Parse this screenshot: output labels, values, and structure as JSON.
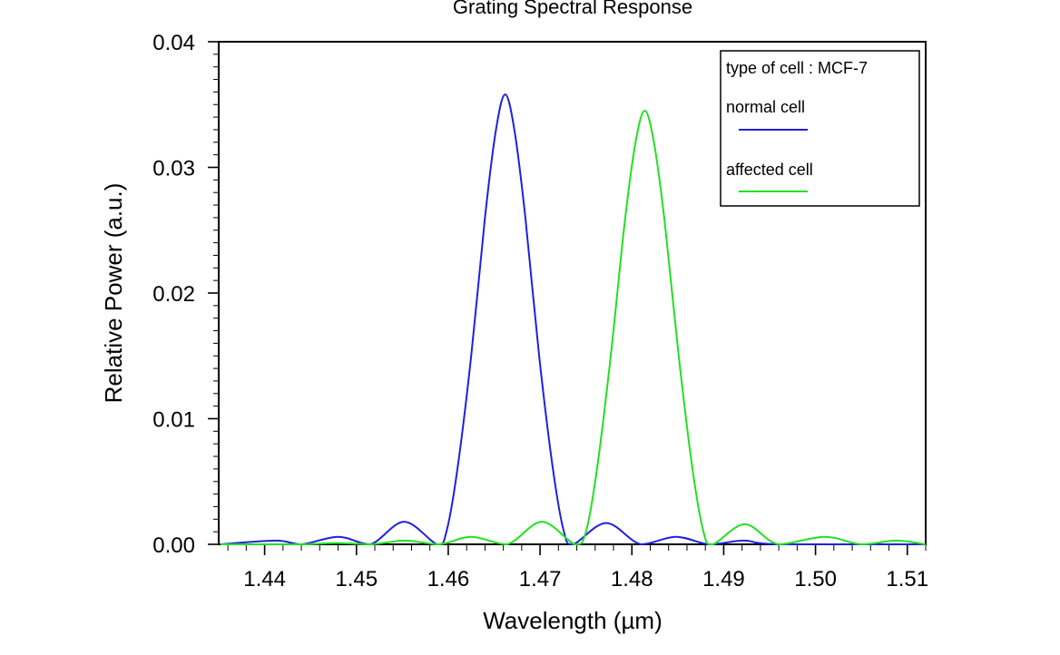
{
  "chart_data": {
    "type": "line",
    "title": "Grating Spectral Response",
    "xlabel": "Wavelength (µm)",
    "ylabel": "Relative Power (a.u.)",
    "xlim": [
      1.435,
      1.512
    ],
    "ylim": [
      0,
      0.04
    ],
    "x_ticks": [
      "1.44",
      "1.45",
      "1.46",
      "1.47",
      "1.48",
      "1.49",
      "1.50",
      "1.51"
    ],
    "y_ticks": [
      "0.00",
      "0.01",
      "0.02",
      "0.03",
      "0.04"
    ],
    "grid": false,
    "legend_position": "top-right",
    "legend_heading": "type of cell : MCF-7",
    "series": [
      {
        "name": "normal cell",
        "color": "#2020e0",
        "peak_x": 1.4662,
        "peak_y": 0.0358,
        "points": [
          [
            1.4352,
            0.0
          ],
          [
            1.4412,
            0.0003
          ],
          [
            1.444,
            0.0
          ],
          [
            1.448,
            0.0006
          ],
          [
            1.4515,
            0.0
          ],
          [
            1.4552,
            0.0018
          ],
          [
            1.4588,
            0.0
          ],
          [
            1.4598,
            0.001
          ],
          [
            1.461,
            0.006
          ],
          [
            1.4625,
            0.015
          ],
          [
            1.464,
            0.026
          ],
          [
            1.4652,
            0.033
          ],
          [
            1.4662,
            0.0358
          ],
          [
            1.4672,
            0.033
          ],
          [
            1.4684,
            0.026
          ],
          [
            1.4699,
            0.015
          ],
          [
            1.4714,
            0.006
          ],
          [
            1.4726,
            0.001
          ],
          [
            1.4736,
            0.0
          ],
          [
            1.4772,
            0.0017
          ],
          [
            1.481,
            0.0
          ],
          [
            1.4848,
            0.0006
          ],
          [
            1.4885,
            0.0
          ],
          [
            1.4922,
            0.0003
          ],
          [
            1.496,
            0.0
          ],
          [
            1.512,
            0.0
          ]
        ]
      },
      {
        "name": "affected cell",
        "color": "#22e022",
        "peak_x": 1.4814,
        "peak_y": 0.0345,
        "points": [
          [
            1.4352,
            0.0
          ],
          [
            1.444,
            0.0
          ],
          [
            1.4478,
            0.0001
          ],
          [
            1.4515,
            0.0
          ],
          [
            1.4553,
            0.0003
          ],
          [
            1.459,
            0.0
          ],
          [
            1.4625,
            0.0006
          ],
          [
            1.4664,
            0.0
          ],
          [
            1.4702,
            0.0018
          ],
          [
            1.4738,
            0.0
          ],
          [
            1.475,
            0.001
          ],
          [
            1.4762,
            0.006
          ],
          [
            1.4777,
            0.015
          ],
          [
            1.4792,
            0.0255
          ],
          [
            1.4804,
            0.032
          ],
          [
            1.4814,
            0.0345
          ],
          [
            1.4824,
            0.032
          ],
          [
            1.4836,
            0.0255
          ],
          [
            1.4851,
            0.015
          ],
          [
            1.4866,
            0.006
          ],
          [
            1.4878,
            0.001
          ],
          [
            1.4888,
            0.0
          ],
          [
            1.4923,
            0.0016
          ],
          [
            1.496,
            0.0
          ],
          [
            1.501,
            0.0006
          ],
          [
            1.505,
            0.0
          ],
          [
            1.5088,
            0.0003
          ],
          [
            1.512,
            0.0
          ]
        ]
      }
    ]
  }
}
